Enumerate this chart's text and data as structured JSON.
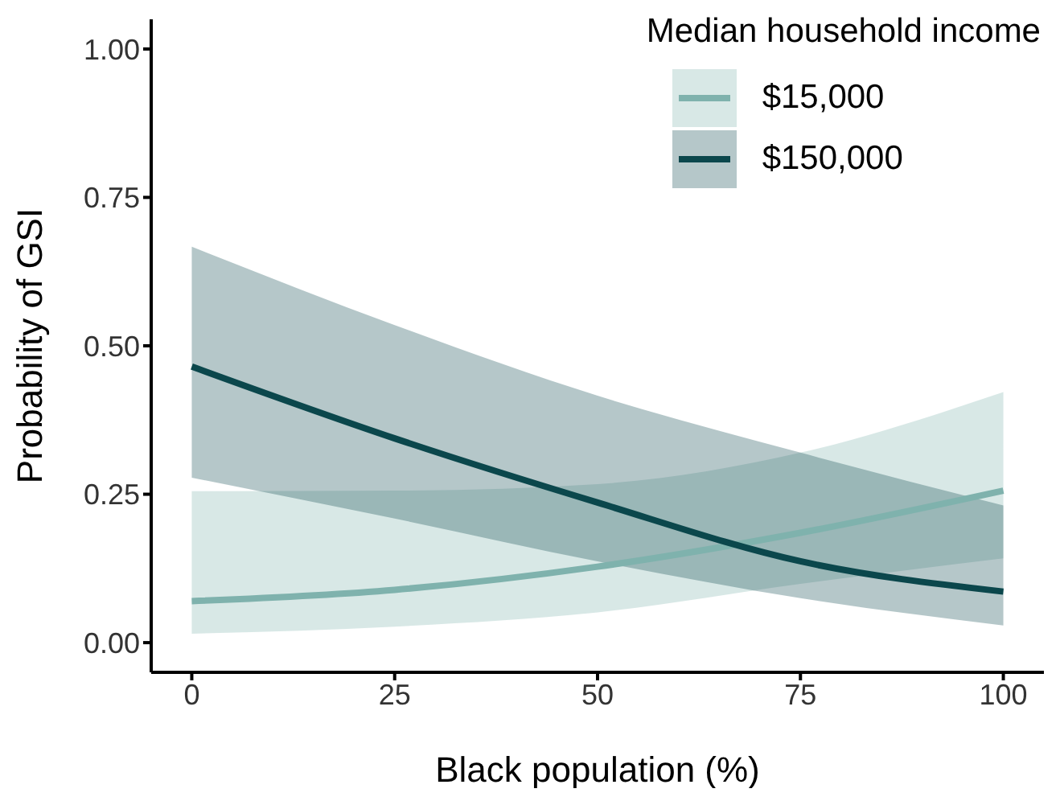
{
  "chart_data": {
    "type": "line",
    "xlabel": "Black population (%)",
    "ylabel": "Probability of GSI",
    "legend_title": "Median household income",
    "x": [
      0,
      25,
      50,
      75,
      100
    ],
    "series": [
      {
        "name": "$15,000",
        "color": "#7fb2ad",
        "values": [
          0.07,
          0.089,
          0.128,
          0.185,
          0.256
        ],
        "lower": [
          0.015,
          0.027,
          0.051,
          0.099,
          0.142
        ],
        "upper": [
          0.255,
          0.256,
          0.267,
          0.32,
          0.422
        ]
      },
      {
        "name": "$150,000",
        "color": "#0b474c",
        "values": [
          0.465,
          0.344,
          0.236,
          0.137,
          0.086
        ],
        "lower": [
          0.278,
          0.209,
          0.137,
          0.075,
          0.029
        ],
        "upper": [
          0.667,
          0.535,
          0.416,
          0.32,
          0.231
        ]
      }
    ],
    "xlim": [
      -5,
      105
    ],
    "xticks": [
      0,
      25,
      50,
      75,
      100
    ],
    "ylim": [
      -0.05,
      1.05
    ],
    "yticks": [
      {
        "value": 0,
        "label": "0.00"
      },
      {
        "value": 0.25,
        "label": "0.25"
      },
      {
        "value": 0.5,
        "label": "0.50"
      },
      {
        "value": 0.75,
        "label": "0.75"
      },
      {
        "value": 1,
        "label": "1.00"
      }
    ],
    "grid": false,
    "legend": "top right",
    "marker": "none",
    "line_style": "solid"
  }
}
